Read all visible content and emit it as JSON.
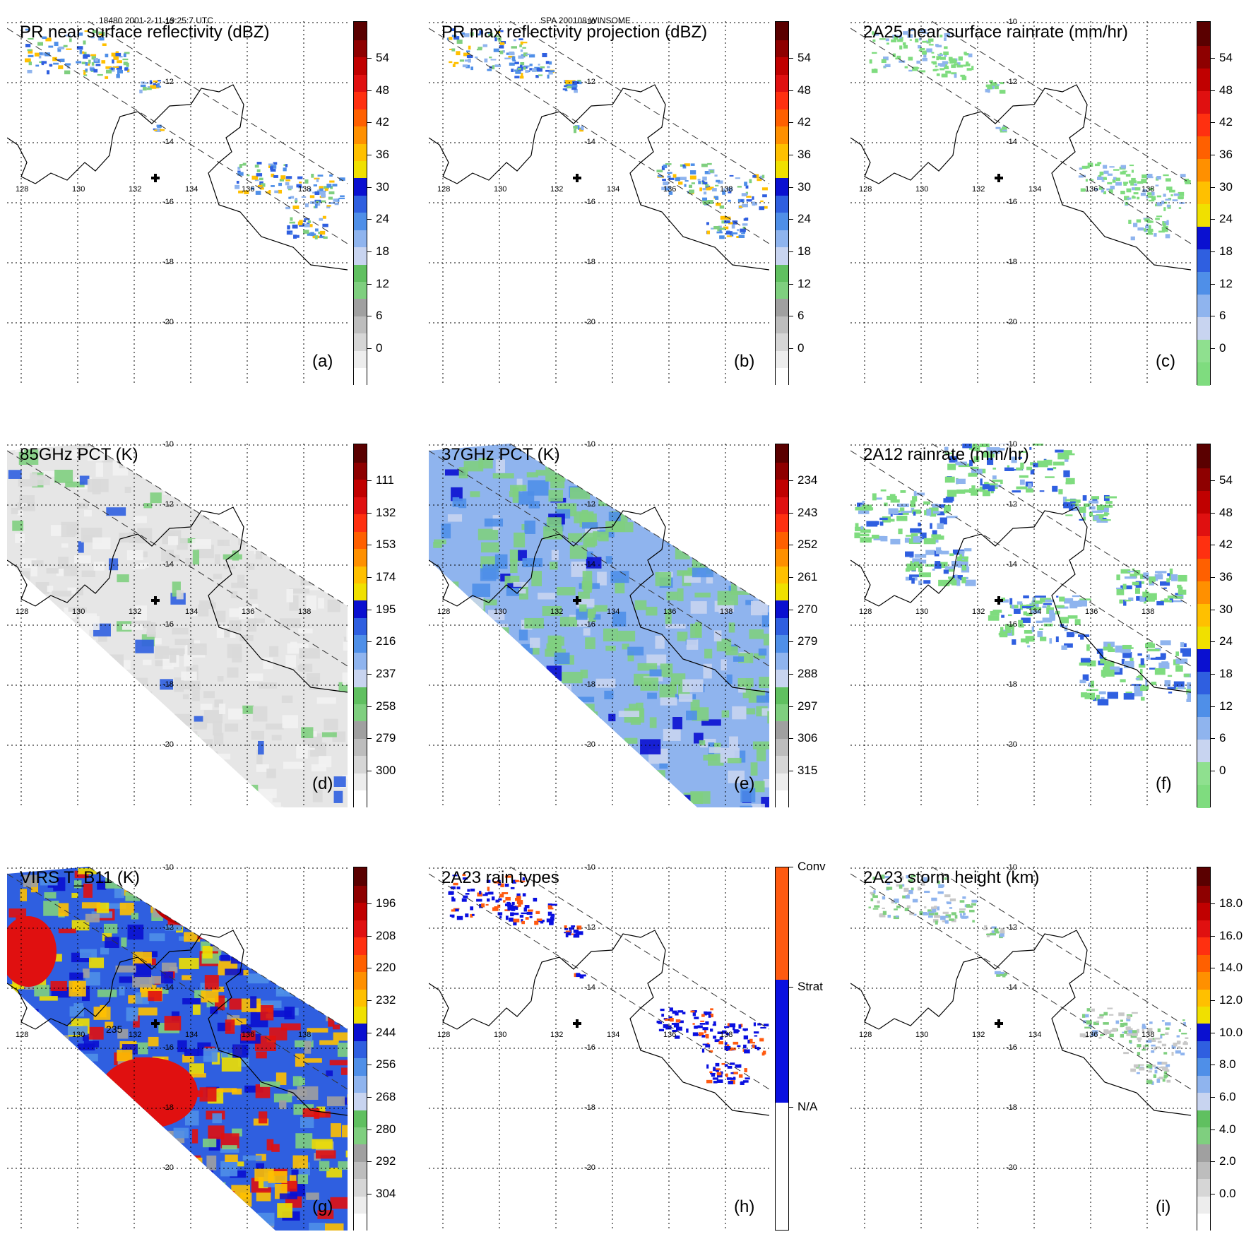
{
  "header": {
    "left": "18480 2001-2-11 19:25:7 UTC",
    "center": "SPA 200108 WINSOME"
  },
  "lon_labels": [
    "128",
    "130",
    "132",
    "134",
    "136",
    "138"
  ],
  "lat_labels": [
    "-10",
    "-12",
    "-14",
    "-16",
    "-18",
    "-20"
  ],
  "palettes": {
    "std": [
      "#ffffff",
      "#ededed",
      "#d6d6d6",
      "#bdbdbd",
      "#a0a0a0",
      "#7fcf7f",
      "#60c060",
      "#c8d4f0",
      "#8fb4ee",
      "#4f8fe8",
      "#2f5fe0",
      "#0a10d0",
      "#f0e000",
      "#ffc000",
      "#ff9000",
      "#ff6000",
      "#ff3010",
      "#e01010",
      "#c00000",
      "#8e0000",
      "#5a0000"
    ],
    "pct": [
      "#ffffff",
      "#ededed",
      "#d6d6d6",
      "#bdbdbd",
      "#a0a0a0",
      "#7fcf7f",
      "#60c060",
      "#c8d4f0",
      "#8fb4ee",
      "#4f8fe8",
      "#2f5fe0",
      "#0a10d0",
      "#f0e000",
      "#ffc000",
      "#ff9000",
      "#ff6000",
      "#ff3010",
      "#e01010",
      "#c00000",
      "#8e0000",
      "#5a0000"
    ],
    "rain": [
      "#7fdc7f",
      "#8fe08f",
      "#c8d4f0",
      "#8fb4ee",
      "#4f8fe8",
      "#2f5fe0",
      "#0a10d0",
      "#f0e000",
      "#ffc000",
      "#ff9000",
      "#ff6000",
      "#ff3010",
      "#e01010",
      "#c00000",
      "#8e0000",
      "#5a0000"
    ],
    "types": [
      "#ffffff",
      "#0a10e0",
      "#ff5a10"
    ]
  },
  "panels": [
    {
      "key": "a",
      "title": "PR near surface reflectivity (dBZ)",
      "label": "(a)",
      "ticks": [
        "54",
        "48",
        "42",
        "36",
        "30",
        "24",
        "18",
        "12",
        "6",
        "0"
      ],
      "palette": "std"
    },
    {
      "key": "b",
      "title": "PR max reflectivity projection (dBZ)",
      "label": "(b)",
      "ticks": [
        "54",
        "48",
        "42",
        "36",
        "30",
        "24",
        "18",
        "12",
        "6",
        "0"
      ],
      "palette": "std"
    },
    {
      "key": "c",
      "title": "2A25 near surface rainrate (mm/hr)",
      "label": "(c)",
      "ticks": [
        "54",
        "48",
        "42",
        "36",
        "30",
        "24",
        "18",
        "12",
        "6",
        "0"
      ],
      "palette": "rain"
    },
    {
      "key": "d",
      "title": "85GHz PCT (K)",
      "label": "(d)",
      "ticks": [
        "111",
        "132",
        "153",
        "174",
        "195",
        "216",
        "237",
        "258",
        "279",
        "300"
      ],
      "palette": "pct"
    },
    {
      "key": "e",
      "title": "37GHz PCT (K)",
      "label": "(e)",
      "ticks": [
        "234",
        "243",
        "252",
        "261",
        "270",
        "279",
        "288",
        "297",
        "306",
        "315"
      ],
      "palette": "pct"
    },
    {
      "key": "f",
      "title": "2A12 rainrate (mm/hr)",
      "label": "(f)",
      "ticks": [
        "54",
        "48",
        "42",
        "36",
        "30",
        "24",
        "18",
        "12",
        "6",
        "0"
      ],
      "palette": "rain"
    },
    {
      "key": "g",
      "title": "VIRS T_B11 (K)",
      "label": "(g)",
      "ticks": [
        "196",
        "208",
        "220",
        "232",
        "244",
        "256",
        "268",
        "280",
        "292",
        "304"
      ],
      "palette": "pct"
    },
    {
      "key": "h",
      "title": "2A23 rain types",
      "label": "(h)",
      "ticks": [
        "Conv",
        "Strat",
        "N/A"
      ],
      "palette": "types"
    },
    {
      "key": "i",
      "title": "2A23 storm height (km)",
      "label": "(i)",
      "ticks": [
        "18.0",
        "16.0",
        "14.0",
        "12.0",
        "10.0",
        "8.0",
        "6.0",
        "4.0",
        "2.0",
        "0.0"
      ],
      "palette": "std"
    }
  ],
  "virs_contour_label": "235"
}
